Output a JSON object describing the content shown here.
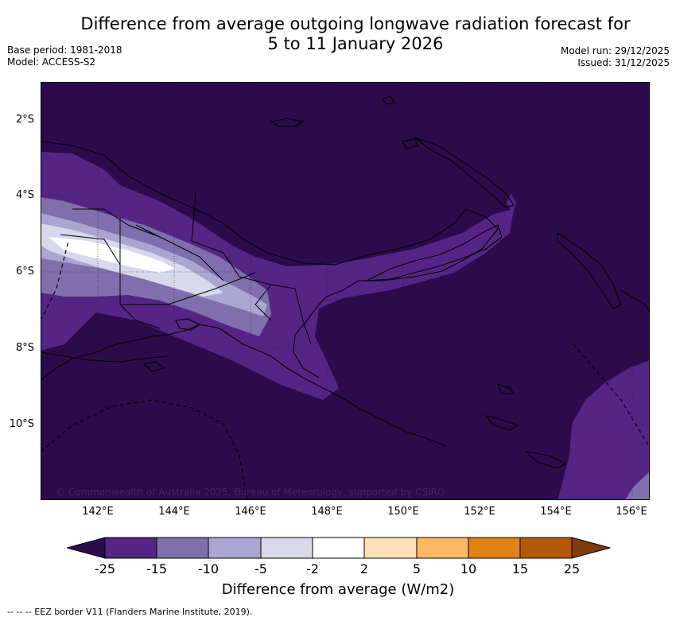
{
  "header": {
    "title_line1": "Difference from average outgoing longwave radiation forecast for",
    "title_line2": "5 to 11 January 2026",
    "base_period": "Base period: 1981-2018",
    "model": "Model: ACCESS-S2",
    "model_run": "Model run: 29/12/2025",
    "issued": "Issued: 31/12/2025"
  },
  "map": {
    "lat_labels": [
      "2°S",
      "4°S",
      "6°S",
      "8°S",
      "10°S"
    ],
    "lon_labels": [
      "142°E",
      "144°E",
      "146°E",
      "148°E",
      "150°E",
      "152°E",
      "154°E",
      "156°E"
    ],
    "copyright": "© Commonwealth of Australia 2025, Bureau of Meteorology, supported by CSIRO",
    "colors": {
      "lt_neg25": "#2c0a4b",
      "neg25_neg15": "#552585",
      "neg15_neg10": "#7f6fad",
      "neg10_neg5": "#aba5d1",
      "neg5_neg2": "#d8d8ea",
      "neg2_2": "#ffffff",
      "land_outline": "#000000"
    }
  },
  "colorbar": {
    "labels": [
      "-25",
      "-15",
      "-10",
      "-5",
      "-2",
      "2",
      "5",
      "10",
      "15",
      "25"
    ],
    "colors": [
      "#2c0a4b",
      "#552585",
      "#7f6fad",
      "#aba5d1",
      "#d8d8ea",
      "#ffffff",
      "#fee0b6",
      "#fdb863",
      "#e08214",
      "#b35806",
      "#7f3b08"
    ],
    "title": "Difference from average (W/m2)"
  },
  "footnote": "--  --  -- EEZ border V11 (Flanders Marine Institute, 2019)."
}
